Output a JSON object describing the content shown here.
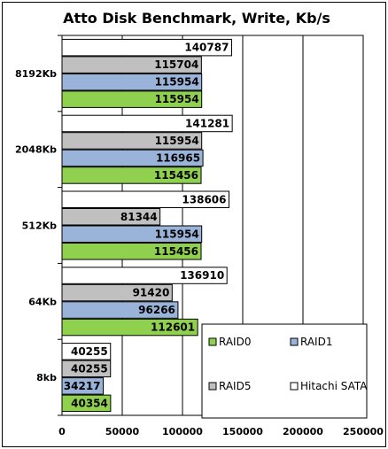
{
  "chart_data": {
    "type": "bar",
    "orientation": "horizontal",
    "title": "Atto Disk Benchmark, Write, Kb/s",
    "categories": [
      "8192Kb",
      "2048Kb",
      "512Kb",
      "64Kb",
      "8kb"
    ],
    "series": [
      {
        "name": "Hitachi SATA",
        "color": "#ffffff",
        "values": [
          140787,
          141281,
          138606,
          136910,
          40255
        ]
      },
      {
        "name": "RAID5",
        "color": "#c0c0c0",
        "values": [
          115704,
          115954,
          81344,
          91420,
          40255
        ]
      },
      {
        "name": "RAID1",
        "color": "#99b3d9",
        "values": [
          115954,
          116965,
          115954,
          96266,
          34217
        ]
      },
      {
        "name": "RAID0",
        "color": "#8fd14f",
        "values": [
          115954,
          115456,
          115456,
          112601,
          40354
        ]
      }
    ],
    "xlim": [
      0,
      250000
    ],
    "xticks": [
      0,
      50000,
      100000,
      150000,
      200000,
      250000
    ],
    "grid": true,
    "legend": {
      "position": "bottom-right",
      "order": [
        "RAID0",
        "RAID1",
        "RAID5",
        "Hitachi SATA"
      ]
    }
  }
}
